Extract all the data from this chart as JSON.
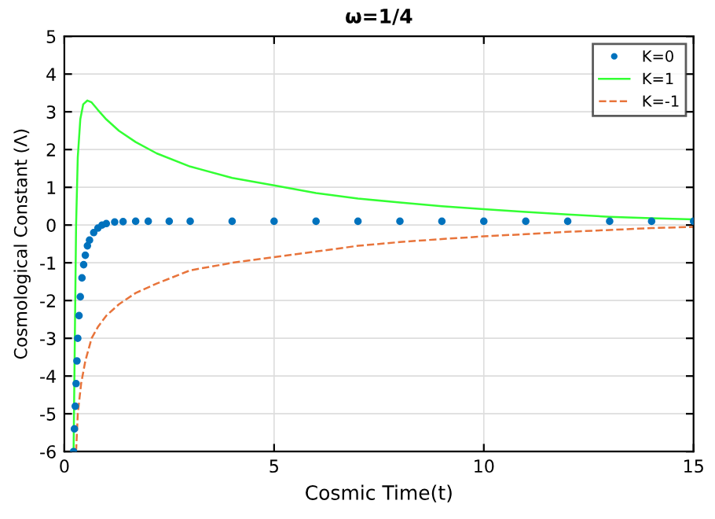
{
  "chart_data": {
    "type": "line",
    "title": "ω=1/4",
    "xlabel": "Cosmic Time(t)",
    "ylabel": "Cosmological Constant (Λ)",
    "xlim": [
      0,
      15
    ],
    "ylim": [
      -6,
      5
    ],
    "xticks": [
      0,
      5,
      10,
      15
    ],
    "yticks": [
      -6,
      -5,
      -4,
      -3,
      -2,
      -1,
      0,
      1,
      2,
      3,
      4,
      5
    ],
    "grid": true,
    "legend": "top right",
    "series": [
      {
        "name": "K=0",
        "color": "#0072bd",
        "type": "scatter",
        "marker": "circle",
        "x": [
          0.22,
          0.24,
          0.26,
          0.28,
          0.3,
          0.32,
          0.35,
          0.38,
          0.42,
          0.46,
          0.5,
          0.55,
          0.6,
          0.7,
          0.8,
          0.9,
          1.0,
          1.2,
          1.4,
          1.7,
          2.0,
          2.5,
          3,
          4,
          5,
          6,
          7,
          8,
          9,
          10,
          11,
          12,
          13,
          14,
          15
        ],
        "values": [
          -6,
          -5.4,
          -4.8,
          -4.2,
          -3.6,
          -3.0,
          -2.4,
          -1.9,
          -1.4,
          -1.05,
          -0.8,
          -0.55,
          -0.4,
          -0.2,
          -0.08,
          0.0,
          0.04,
          0.08,
          0.09,
          0.1,
          0.1,
          0.1,
          0.1,
          0.1,
          0.1,
          0.1,
          0.1,
          0.1,
          0.1,
          0.1,
          0.1,
          0.1,
          0.1,
          0.1,
          0.1
        ]
      },
      {
        "name": "K=1",
        "color": "#33ff33",
        "line_style": "solid",
        "x": [
          0.22,
          0.25,
          0.28,
          0.32,
          0.38,
          0.45,
          0.55,
          0.65,
          0.8,
          1.0,
          1.3,
          1.7,
          2.2,
          3,
          4,
          5,
          6,
          7,
          8,
          9,
          10,
          11,
          12,
          13,
          14,
          15
        ],
        "values": [
          -6,
          -3,
          0,
          1.8,
          2.8,
          3.2,
          3.3,
          3.25,
          3.05,
          2.8,
          2.5,
          2.2,
          1.9,
          1.55,
          1.25,
          1.05,
          0.85,
          0.7,
          0.6,
          0.5,
          0.42,
          0.35,
          0.28,
          0.22,
          0.18,
          0.15
        ]
      },
      {
        "name": "K=-1",
        "color": "#e8743b",
        "line_style": "dashed",
        "x": [
          0.28,
          0.32,
          0.4,
          0.5,
          0.65,
          0.8,
          1.0,
          1.3,
          1.7,
          2.2,
          3,
          4,
          5,
          6,
          7,
          8,
          9,
          10,
          11,
          12,
          13,
          14,
          15
        ],
        "values": [
          -6,
          -5,
          -4.2,
          -3.6,
          -3.0,
          -2.7,
          -2.4,
          -2.1,
          -1.8,
          -1.55,
          -1.2,
          -1.0,
          -0.85,
          -0.7,
          -0.55,
          -0.45,
          -0.37,
          -0.3,
          -0.24,
          -0.18,
          -0.13,
          -0.08,
          -0.05
        ]
      }
    ]
  }
}
